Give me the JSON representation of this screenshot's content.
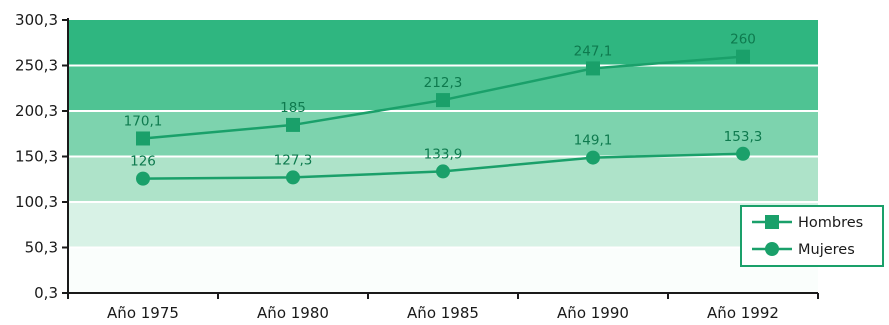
{
  "chart_data": {
    "type": "line",
    "categories": [
      "Año 1975",
      "Año 1980",
      "Año 1985",
      "Año 1990",
      "Año 1992"
    ],
    "series": [
      {
        "name": "Hombres",
        "marker": "square",
        "values": [
          170.1,
          185,
          212.3,
          247.1,
          260
        ],
        "labels": [
          "170,1",
          "185",
          "212,3",
          "247,1",
          "260"
        ]
      },
      {
        "name": "Mujeres",
        "marker": "circle",
        "values": [
          126,
          127.3,
          133.9,
          149.1,
          153.3
        ],
        "labels": [
          "126",
          "127,3",
          "133,9",
          "149,1",
          "153,3"
        ]
      }
    ],
    "yticks": [
      0.3,
      50.3,
      100.3,
      150.3,
      200.3,
      250.3,
      300.3
    ],
    "ytick_labels": [
      "0,3",
      "50,3",
      "100,3",
      "150,3",
      "200,3",
      "250,3",
      "300,3"
    ],
    "ylim": [
      0.3,
      300.3
    ],
    "title": "",
    "xlabel": "",
    "ylabel": "",
    "legend_position": "right",
    "colors": {
      "line": "#1aa06a",
      "label": "#0e7a4e",
      "axis": "#1a1a1a",
      "bands": [
        "#fafefc",
        "#d8f2e6",
        "#aee3c9",
        "#7dd3ae",
        "#4fc393",
        "#2fb680"
      ]
    }
  }
}
